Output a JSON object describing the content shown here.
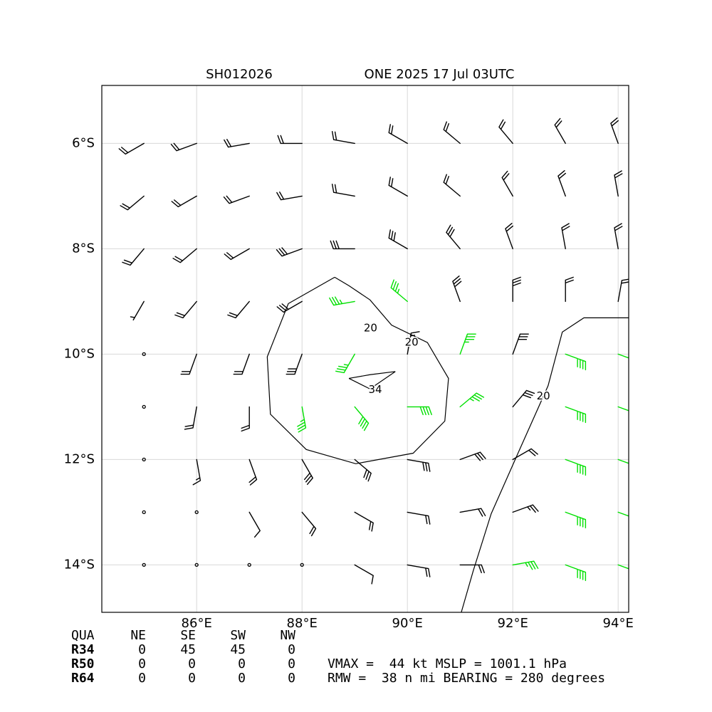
{
  "chart_data": {
    "type": "barbs",
    "title_left": "SH012026",
    "title_right": "ONE 2025 17 Jul 03UTC",
    "xlim": [
      84.2,
      94.2
    ],
    "ylim": [
      -14.9,
      -4.9
    ],
    "xticks": [
      {
        "value": 86,
        "label": "86°E"
      },
      {
        "value": 88,
        "label": "88°E"
      },
      {
        "value": 90,
        "label": "90°E"
      },
      {
        "value": 92,
        "label": "92°E"
      },
      {
        "value": 94,
        "label": "94°E"
      }
    ],
    "yticks": [
      {
        "value": -6,
        "label": "6°S"
      },
      {
        "value": -8,
        "label": "8°S"
      },
      {
        "value": -10,
        "label": "10°S"
      },
      {
        "value": -12,
        "label": "12°S"
      },
      {
        "value": -14,
        "label": "14°S"
      }
    ],
    "grid": true,
    "barb_color_levels": [
      {
        "min": 0,
        "color": "#000000"
      },
      {
        "min": 34,
        "color": "#00e000"
      },
      {
        "min": 50,
        "color": "#f0a000"
      }
    ],
    "barbs": {
      "lon": [
        85,
        86,
        87,
        88,
        89,
        90,
        91,
        92,
        93,
        94
      ],
      "lat": [
        -6,
        -7,
        -8,
        -9,
        -10,
        -11,
        -12,
        -13,
        -14
      ],
      "speed": [
        [
          18,
          18,
          18,
          18,
          18,
          18,
          18,
          18,
          18,
          18
        ],
        [
          18,
          18,
          18,
          22,
          22,
          22,
          22,
          18,
          18,
          18
        ],
        [
          18,
          18,
          22,
          30,
          30,
          30,
          30,
          22,
          18,
          18
        ],
        [
          5,
          18,
          22,
          30,
          35,
          35,
          30,
          30,
          18,
          18
        ],
        [
          3,
          18,
          22,
          30,
          35,
          15,
          35,
          30,
          38,
          38
        ],
        [
          3,
          18,
          22,
          35,
          38,
          40,
          35,
          28,
          38,
          38
        ],
        [
          2,
          15,
          20,
          30,
          32,
          30,
          28,
          22,
          38,
          38
        ],
        [
          2,
          3,
          12,
          18,
          22,
          22,
          22,
          25,
          38,
          38
        ],
        [
          2,
          2,
          2,
          3,
          12,
          18,
          20,
          35,
          38,
          38
        ]
      ],
      "direction": [
        [
          240,
          250,
          260,
          270,
          280,
          300,
          310,
          320,
          330,
          340
        ],
        [
          230,
          240,
          250,
          260,
          280,
          300,
          310,
          330,
          340,
          350
        ],
        [
          220,
          230,
          240,
          250,
          270,
          300,
          320,
          340,
          350,
          350
        ],
        [
          210,
          220,
          220,
          240,
          260,
          310,
          340,
          0,
          0,
          10
        ],
        [
          200,
          200,
          200,
          200,
          210,
          10,
          20,
          20,
          110,
          110
        ],
        [
          190,
          190,
          180,
          170,
          140,
          90,
          50,
          40,
          110,
          110
        ],
        [
          180,
          170,
          160,
          150,
          130,
          100,
          70,
          60,
          110,
          110
        ],
        [
          170,
          160,
          150,
          140,
          120,
          100,
          80,
          70,
          110,
          110
        ],
        [
          160,
          150,
          140,
          130,
          120,
          100,
          90,
          80,
          110,
          110
        ]
      ]
    },
    "contours": [
      {
        "lon": [
          88.62,
          87.74,
          87.34,
          87.4,
          88.08,
          89.02,
          90.11,
          90.71,
          90.78,
          90.38,
          89.7,
          89.29,
          88.89,
          88.62
        ],
        "lat": [
          -8.54,
          -9.04,
          -10.05,
          -11.14,
          -11.81,
          -12.08,
          -11.88,
          -11.27,
          -10.46,
          -9.78,
          -9.45,
          -8.97,
          -8.7,
          -8.54
        ]
      },
      {
        "lon": [
          88.89,
          89.29,
          89.77,
          89.29,
          88.89
        ],
        "lat": [
          -10.46,
          -10.66,
          -10.33,
          -10.39,
          -10.46
        ]
      },
      {
        "lon": [
          94.2,
          93.35,
          92.94,
          92.67,
          92.13,
          91.59,
          91.25,
          91.02
        ],
        "lat": [
          -9.31,
          -9.31,
          -9.58,
          -10.6,
          -11.81,
          -13.03,
          -14.11,
          -14.91
        ]
      }
    ],
    "contour_labels": [
      {
        "text": "20",
        "lon": 89.3,
        "lat": -9.51
      },
      {
        "text": "20",
        "lon": 90.08,
        "lat": -9.78
      },
      {
        "text": "34",
        "lon": 89.39,
        "lat": -10.68
      },
      {
        "text": "20",
        "lon": 92.58,
        "lat": -10.8
      }
    ],
    "table": {
      "header": [
        "QUA",
        "NE",
        "SE",
        "SW",
        "NW"
      ],
      "rows": [
        [
          "R34",
          0,
          45,
          45,
          0
        ],
        [
          "R50",
          0,
          0,
          0,
          0
        ],
        [
          "R64",
          0,
          0,
          0,
          0
        ]
      ]
    },
    "info": [
      "VMAX =  44 kt MSLP = 1001.1 hPa",
      "RMW =  38 n mi BEARING = 280 degrees"
    ]
  }
}
